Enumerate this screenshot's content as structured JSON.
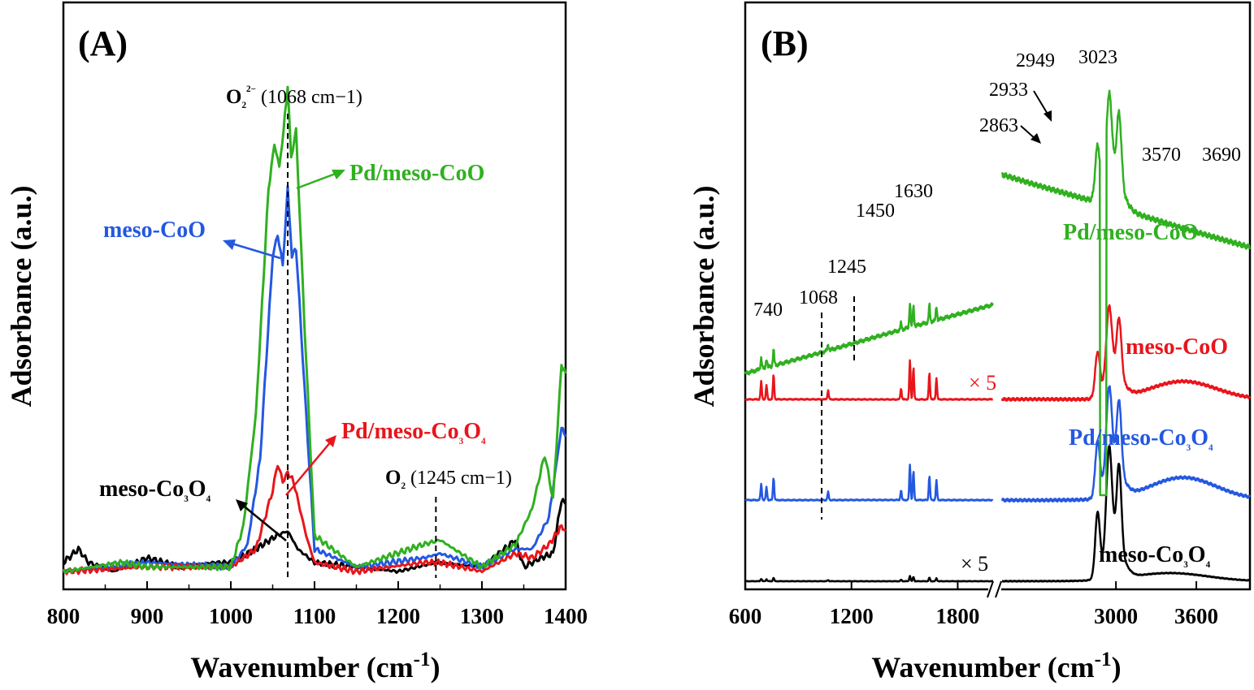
{
  "chart_data": [
    {
      "type": "line",
      "panel": "(A)",
      "xlabel": "Wavenumber (cm-1)",
      "ylabel": "Adsorbance (a.u.)",
      "xlim": [
        800,
        1400
      ],
      "xticks": [
        "800",
        "900",
        "1000",
        "1100",
        "1200",
        "1300",
        "1400"
      ],
      "series": [
        {
          "name": "meso-Co3O4",
          "label_main": "meso-Co",
          "label_sub1": "3",
          "label_mid": "O",
          "label_sub2": "4",
          "color": "#000000",
          "points": [
            [
              800,
              0.02
            ],
            [
              818,
              0.05
            ],
            [
              830,
              0.02
            ],
            [
              860,
              0.0
            ],
            [
              900,
              0.03
            ],
            [
              940,
              0.01
            ],
            [
              980,
              0.02
            ],
            [
              1000,
              0.02
            ],
            [
              1030,
              0.05
            ],
            [
              1055,
              0.08
            ],
            [
              1068,
              0.09
            ],
            [
              1080,
              0.05
            ],
            [
              1100,
              0.02
            ],
            [
              1150,
              0.01
            ],
            [
              1200,
              0.0
            ],
            [
              1245,
              0.02
            ],
            [
              1300,
              0.01
            ],
            [
              1340,
              0.07
            ],
            [
              1350,
              0.01
            ],
            [
              1370,
              0.03
            ],
            [
              1385,
              0.04
            ],
            [
              1395,
              0.16
            ],
            [
              1400,
              0.15
            ]
          ]
        },
        {
          "name": "meso-CoO",
          "label": "meso-CoO",
          "color": "#2458e0",
          "points": [
            [
              800,
              0.0
            ],
            [
              900,
              0.02
            ],
            [
              1000,
              0.01
            ],
            [
              1020,
              0.06
            ],
            [
              1035,
              0.25
            ],
            [
              1050,
              0.7
            ],
            [
              1056,
              0.75
            ],
            [
              1062,
              0.68
            ],
            [
              1068,
              0.85
            ],
            [
              1073,
              0.7
            ],
            [
              1078,
              0.72
            ],
            [
              1090,
              0.35
            ],
            [
              1100,
              0.05
            ],
            [
              1150,
              0.01
            ],
            [
              1230,
              0.03
            ],
            [
              1250,
              0.04
            ],
            [
              1300,
              0.01
            ],
            [
              1340,
              0.05
            ],
            [
              1360,
              0.05
            ],
            [
              1380,
              0.12
            ],
            [
              1395,
              0.32
            ],
            [
              1400,
              0.3
            ]
          ]
        },
        {
          "name": "Pd/meso-Co3O4",
          "label_main": "Pd/meso-Co",
          "label_sub1": "3",
          "label_mid": "O",
          "label_sub2": "4",
          "color": "#e8151b",
          "points": [
            [
              800,
              0.0
            ],
            [
              900,
              0.01
            ],
            [
              1000,
              0.01
            ],
            [
              1030,
              0.05
            ],
            [
              1050,
              0.18
            ],
            [
              1056,
              0.24
            ],
            [
              1062,
              0.2
            ],
            [
              1068,
              0.22
            ],
            [
              1075,
              0.2
            ],
            [
              1090,
              0.08
            ],
            [
              1100,
              0.02
            ],
            [
              1150,
              0.0
            ],
            [
              1230,
              0.02
            ],
            [
              1250,
              0.02
            ],
            [
              1300,
              0.0
            ],
            [
              1340,
              0.04
            ],
            [
              1360,
              0.03
            ],
            [
              1380,
              0.06
            ],
            [
              1395,
              0.1
            ],
            [
              1400,
              0.09
            ]
          ]
        },
        {
          "name": "Pd/meso-CoO",
          "label": "Pd/meso-CoO",
          "color": "#30b020",
          "points": [
            [
              800,
              0.0
            ],
            [
              870,
              0.02
            ],
            [
              900,
              0.01
            ],
            [
              1000,
              0.01
            ],
            [
              1015,
              0.1
            ],
            [
              1030,
              0.35
            ],
            [
              1045,
              0.85
            ],
            [
              1052,
              0.95
            ],
            [
              1058,
              0.9
            ],
            [
              1063,
              0.98
            ],
            [
              1068,
              1.08
            ],
            [
              1072,
              0.92
            ],
            [
              1078,
              0.98
            ],
            [
              1088,
              0.55
            ],
            [
              1100,
              0.08
            ],
            [
              1150,
              0.01
            ],
            [
              1230,
              0.06
            ],
            [
              1250,
              0.07
            ],
            [
              1300,
              0.01
            ],
            [
              1340,
              0.06
            ],
            [
              1360,
              0.14
            ],
            [
              1375,
              0.26
            ],
            [
              1385,
              0.16
            ],
            [
              1395,
              0.46
            ],
            [
              1400,
              0.44
            ]
          ]
        }
      ],
      "markers": [
        {
          "x": 1068,
          "label_main": "O",
          "label_sub": "2",
          "label_sup": "2−",
          "label_rest": "(1068 cm−1)"
        },
        {
          "x": 1245,
          "label_main": "O",
          "label_sub": "2",
          "label_rest": "(1245 cm−1)"
        }
      ]
    },
    {
      "type": "line",
      "panel": "(B)",
      "xlabel": "Wavenumber (cm-1)",
      "ylabel": "Adsorbance (a.u.)",
      "xlim": [
        600,
        4000
      ],
      "axis_break_between": [
        2000,
        2150
      ],
      "xticks": [
        "600",
        "1200",
        "1800",
        "3000",
        "3600"
      ],
      "scale_note": "× 5",
      "series": [
        {
          "name": "meso-Co3O4",
          "label_main": "meso-Co",
          "label_sub1": "3",
          "label_mid": "O",
          "label_sub2": "4",
          "color": "#000000",
          "offset": 0.0
        },
        {
          "name": "Pd/meso-Co3O4",
          "label_main": "Pd/meso-Co",
          "label_sub1": "3",
          "label_mid": "O",
          "label_sub2": "4",
          "color": "#2458e0",
          "offset": 1.0
        },
        {
          "name": "meso-CoO",
          "label": "meso-CoO",
          "color": "#e8151b",
          "offset": 2.0
        },
        {
          "name": "Pd/meso-CoO",
          "label": "Pd/meso-CoO",
          "color": "#30b020",
          "offset": 3.1
        }
      ],
      "peaks": [
        "740",
        "1068",
        "1245",
        "1450",
        "1630",
        "2863",
        "2933",
        "2949",
        "3023",
        "3570",
        "3690"
      ],
      "dashed_markers": [
        1068,
        1245
      ]
    }
  ]
}
